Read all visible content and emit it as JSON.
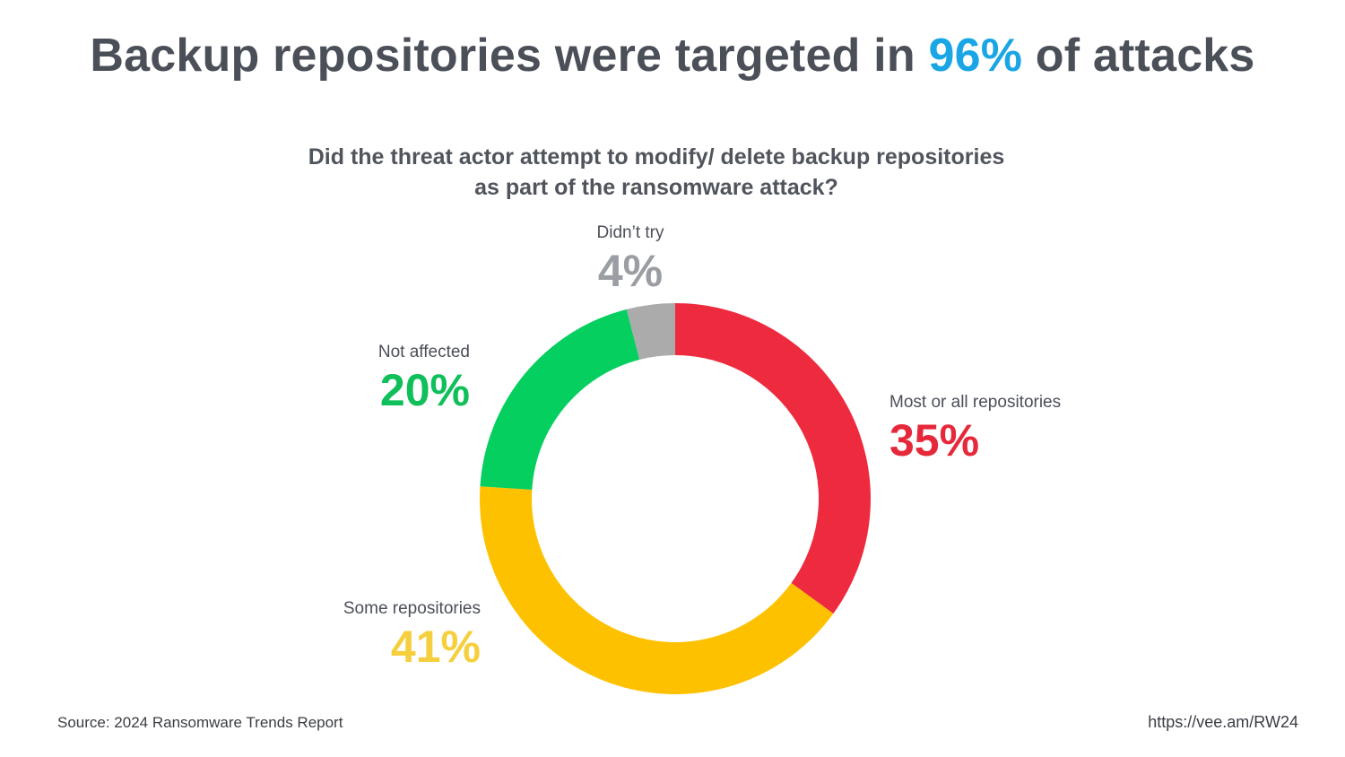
{
  "headline": {
    "before": "Backup repositories were targeted in ",
    "highlight": "96%",
    "after": " of attacks"
  },
  "subtitle": {
    "line1": "Did the threat actor attempt to modify/ delete backup repositories",
    "line2": "as part of the ransomware attack?"
  },
  "chart_data": {
    "type": "pie",
    "style": "donut",
    "labels": [
      "Most or all repositories",
      "Some repositories",
      "Not affected",
      "Didn’t try"
    ],
    "values": [
      35,
      41,
      20,
      4
    ],
    "value_labels": [
      "35%",
      "41%",
      "20%",
      "4%"
    ],
    "colors": [
      "#ee2b3e",
      "#fec100",
      "#05cf5f",
      "#ababab"
    ],
    "value_label_colors": [
      "#e6293a",
      "#f5cf3d",
      "#0fbf5a",
      "#9a9da2"
    ],
    "start": "top, clockwise"
  },
  "footer": {
    "source": "Source: 2024 Ransomware Trends Report",
    "url": "https://vee.am/RW24"
  },
  "colors": {
    "text": "#4b4f58",
    "accent": "#1aa6e4"
  }
}
